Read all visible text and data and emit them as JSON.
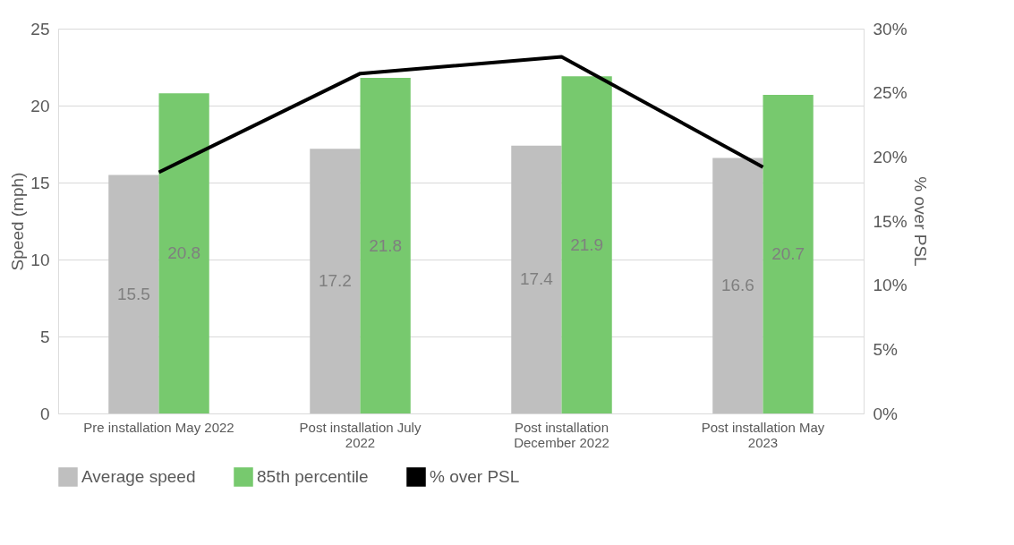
{
  "chart_data": {
    "type": "bar",
    "categories": [
      "Pre installation May 2022",
      "Post installation July 2022",
      "Post installation December 2022",
      "Post installation May 2023"
    ],
    "series": [
      {
        "name": "Average speed",
        "color": "#bfbfbf",
        "values": [
          15.5,
          17.2,
          17.4,
          16.6
        ],
        "value_labels": [
          "15.5",
          "17.2",
          "17.4",
          "16.6"
        ]
      },
      {
        "name": "85th percentile",
        "color": "#77c96e",
        "values": [
          20.8,
          21.8,
          21.9,
          20.7
        ],
        "value_labels": [
          "20.8",
          "21.8",
          "21.9",
          "20.7"
        ]
      },
      {
        "name": "% over PSL",
        "color": "#000000",
        "type": "line",
        "axis": "y2",
        "values": [
          18.8,
          26.5,
          27.8,
          19.2
        ]
      }
    ],
    "ylabel": "Speed (mph)",
    "y2label": "% over PSL",
    "ylim": [
      0,
      25
    ],
    "yticks": [
      0,
      5,
      10,
      15,
      20,
      25
    ],
    "y2lim": [
      0,
      30
    ],
    "y2ticks": [
      {
        "value": 0,
        "label": "0%"
      },
      {
        "value": 5,
        "label": "5%"
      },
      {
        "value": 10,
        "label": "10%"
      },
      {
        "value": 15,
        "label": "15%"
      },
      {
        "value": 20,
        "label": "20%"
      },
      {
        "value": 25,
        "label": "25%"
      },
      {
        "value": 30,
        "label": "30%"
      }
    ],
    "grid": "y",
    "legend": "bottom",
    "line_style": "solid",
    "marker": "none"
  }
}
